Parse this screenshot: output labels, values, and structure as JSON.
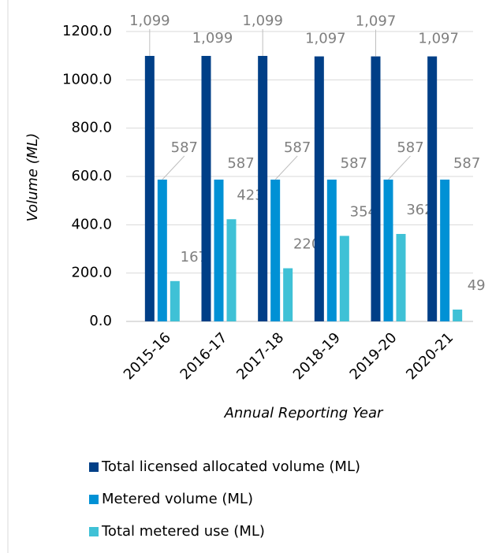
{
  "chart_data": {
    "type": "bar",
    "categories": [
      "2015-16",
      "2016-17",
      "2017-18",
      "2018-19",
      "2019-20",
      "2020-21"
    ],
    "series": [
      {
        "name": "Total licensed allocated volume (ML)",
        "color": "#003f87",
        "values": [
          1099,
          1099,
          1099,
          1097,
          1097,
          1097
        ],
        "value_labels": [
          "1,099",
          "1,099",
          "1,099",
          "1,097",
          "1,097",
          "1,097"
        ]
      },
      {
        "name": "Metered volume (ML)",
        "color": "#0091d5",
        "values": [
          587,
          587,
          587,
          587,
          587,
          587
        ]
      },
      {
        "name": "Total metered use (ML)",
        "color": "#3fc1d6",
        "values": [
          167,
          423,
          220,
          354,
          362,
          49
        ]
      }
    ],
    "xlabel": "Annual Reporting Year",
    "ylabel": "Volume (ML)",
    "ylim": [
      0,
      1200
    ],
    "yticks": [
      {
        "value": 0,
        "label": "0.0"
      },
      {
        "value": 200,
        "label": "200.0"
      },
      {
        "value": 400,
        "label": "400.0"
      },
      {
        "value": 600,
        "label": "600.0"
      },
      {
        "value": 800,
        "label": "800.0"
      },
      {
        "value": 1000,
        "label": "1000.0"
      },
      {
        "value": 1200,
        "label": "1200.0"
      }
    ],
    "grid": true,
    "legend": "bottom"
  }
}
